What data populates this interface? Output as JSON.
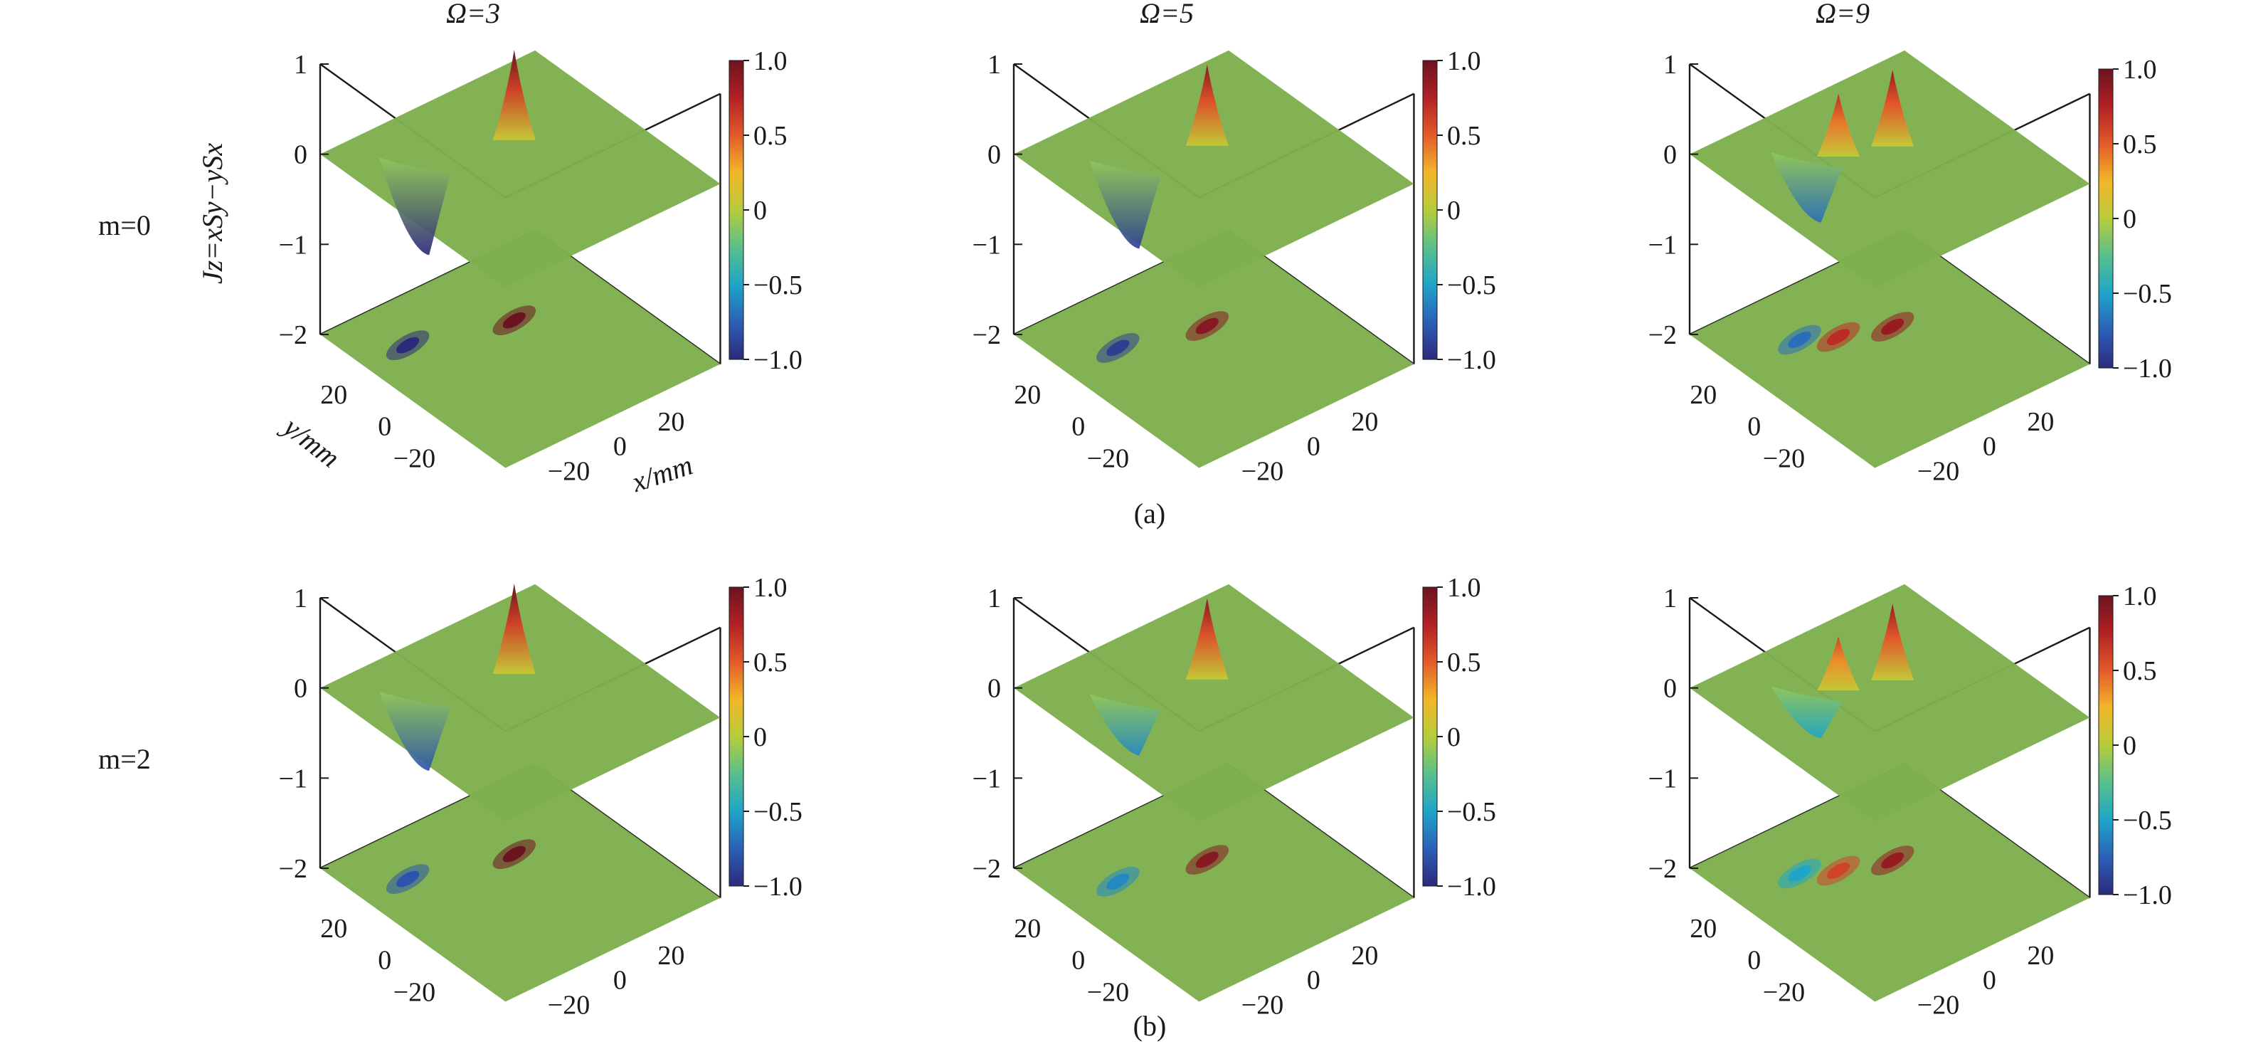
{
  "columns": [
    {
      "label": "Ω=3"
    },
    {
      "label": "Ω=5"
    },
    {
      "label": "Ω=9"
    }
  ],
  "rows": [
    {
      "label": "m=0",
      "caption": "(a)"
    },
    {
      "label": "m=2",
      "caption": "(b)"
    }
  ],
  "z_axis_label": "Jz=xSy−ySx",
  "x_axis_label": "x/mm",
  "y_axis_label": "y/mm",
  "colormap": [
    "#2c2a7a",
    "#2c5fb8",
    "#1ea5c8",
    "#58c08c",
    "#b7cc3a",
    "#f2b62a",
    "#e35a2a",
    "#b22124",
    "#6b1420"
  ],
  "plane_color": "#7fb04e",
  "chart_data": [
    {
      "type": "surface3d",
      "row": "m=0",
      "column": "Ω=3",
      "z_ticks": [
        "1",
        "0",
        "−1",
        "−2"
      ],
      "zlim": [
        -2,
        1
      ],
      "x_ticks": [
        "−20",
        "0",
        "20"
      ],
      "y_ticks": [
        "20",
        "0",
        "−20"
      ],
      "colorbar_ticks": [
        "1.0",
        "0.5",
        "0",
        "−0.5",
        "−1.0"
      ],
      "clim": [
        -1,
        1
      ],
      "features": [
        {
          "kind": "peak",
          "x": 8,
          "y": 12,
          "z": 1.0
        },
        {
          "kind": "trough",
          "x": -25,
          "y": 22,
          "z": -1.0
        },
        {
          "kind": "projection_max",
          "x": 8,
          "y": 12,
          "value": 1.0
        },
        {
          "kind": "projection_min",
          "x": -25,
          "y": 22,
          "value": -1.0
        }
      ]
    },
    {
      "type": "surface3d",
      "row": "m=0",
      "column": "Ω=5",
      "z_ticks": [
        "1",
        "0",
        "−1",
        "−2"
      ],
      "zlim": [
        -2,
        1
      ],
      "x_ticks": [
        "−20",
        "0",
        "20"
      ],
      "y_ticks": [
        "20",
        "0",
        "−20"
      ],
      "colorbar_ticks": [
        "1.0",
        "0.5",
        "0",
        "−0.5",
        "−1.0"
      ],
      "clim": [
        -1,
        1
      ],
      "features": [
        {
          "kind": "peak",
          "x": 6,
          "y": 10,
          "z": 0.9
        },
        {
          "kind": "trough",
          "x": -22,
          "y": 18,
          "z": -0.9
        },
        {
          "kind": "projection_max",
          "x": 6,
          "y": 10,
          "value": 0.9
        },
        {
          "kind": "projection_min",
          "x": -22,
          "y": 18,
          "value": -0.9
        }
      ]
    },
    {
      "type": "surface3d",
      "row": "m=0",
      "column": "Ω=9",
      "z_ticks": [
        "1",
        "0",
        "−1",
        "−2"
      ],
      "zlim": [
        -2,
        1
      ],
      "x_ticks": [
        "−20",
        "0",
        "20"
      ],
      "y_ticks": [
        "20",
        "0",
        "−20"
      ],
      "colorbar_ticks": [
        "1.0",
        "0.5",
        "0",
        "−0.5",
        "−1.0"
      ],
      "clim": [
        -1,
        1
      ],
      "features": [
        {
          "kind": "peak",
          "x": 8,
          "y": 8,
          "z": 0.85
        },
        {
          "kind": "peak",
          "x": -8,
          "y": 14,
          "z": 0.7
        },
        {
          "kind": "trough",
          "x": -18,
          "y": 20,
          "z": -0.7
        },
        {
          "kind": "projection_max",
          "x": 8,
          "y": 8,
          "value": 0.85
        },
        {
          "kind": "projection_max",
          "x": -8,
          "y": 14,
          "value": 0.7
        },
        {
          "kind": "projection_min",
          "x": -18,
          "y": 20,
          "value": -0.7
        }
      ]
    },
    {
      "type": "surface3d",
      "row": "m=2",
      "column": "Ω=3",
      "z_ticks": [
        "1",
        "0",
        "−1",
        "−2"
      ],
      "zlim": [
        -2,
        1
      ],
      "x_ticks": [
        "−20",
        "0",
        "20"
      ],
      "y_ticks": [
        "20",
        "0",
        "−20"
      ],
      "colorbar_ticks": [
        "1.0",
        "0.5",
        "0",
        "−0.5",
        "−1.0"
      ],
      "clim": [
        -1,
        1
      ],
      "features": [
        {
          "kind": "peak",
          "x": 8,
          "y": 12,
          "z": 1.0
        },
        {
          "kind": "trough",
          "x": -25,
          "y": 22,
          "z": -0.8
        },
        {
          "kind": "projection_max",
          "x": 8,
          "y": 12,
          "value": 1.0
        },
        {
          "kind": "projection_min",
          "x": -25,
          "y": 22,
          "value": -0.8
        }
      ]
    },
    {
      "type": "surface3d",
      "row": "m=2",
      "column": "Ω=5",
      "z_ticks": [
        "1",
        "0",
        "−1",
        "−2"
      ],
      "zlim": [
        -2,
        1
      ],
      "x_ticks": [
        "−20",
        "0",
        "20"
      ],
      "y_ticks": [
        "20",
        "0",
        "−20"
      ],
      "colorbar_ticks": [
        "1.0",
        "0.5",
        "0",
        "−0.5",
        "−1.0"
      ],
      "clim": [
        -1,
        1
      ],
      "features": [
        {
          "kind": "peak",
          "x": 6,
          "y": 10,
          "z": 0.9
        },
        {
          "kind": "trough",
          "x": -22,
          "y": 18,
          "z": -0.6
        },
        {
          "kind": "projection_max",
          "x": 6,
          "y": 10,
          "value": 0.9
        },
        {
          "kind": "projection_min",
          "x": -22,
          "y": 18,
          "value": -0.6
        }
      ]
    },
    {
      "type": "surface3d",
      "row": "m=2",
      "column": "Ω=9",
      "z_ticks": [
        "1",
        "0",
        "−1",
        "−2"
      ],
      "zlim": [
        -2,
        1
      ],
      "x_ticks": [
        "−20",
        "0",
        "20"
      ],
      "y_ticks": [
        "20",
        "0",
        "−20"
      ],
      "colorbar_ticks": [
        "1.0",
        "0.5",
        "0",
        "−0.5",
        "−1.0"
      ],
      "clim": [
        -1,
        1
      ],
      "features": [
        {
          "kind": "peak",
          "x": 8,
          "y": 8,
          "z": 0.85
        },
        {
          "kind": "peak",
          "x": -8,
          "y": 14,
          "z": 0.6
        },
        {
          "kind": "trough",
          "x": -18,
          "y": 20,
          "z": -0.5
        },
        {
          "kind": "projection_max",
          "x": 8,
          "y": 8,
          "value": 0.85
        },
        {
          "kind": "projection_max",
          "x": -8,
          "y": 14,
          "value": 0.6
        },
        {
          "kind": "projection_min",
          "x": -18,
          "y": 20,
          "value": -0.5
        }
      ]
    }
  ]
}
